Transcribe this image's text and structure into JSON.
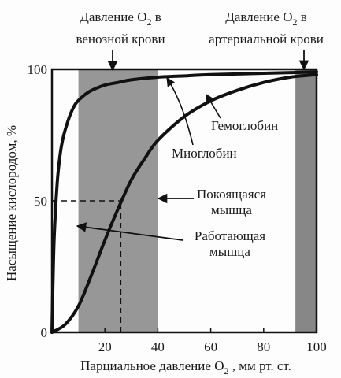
{
  "chart_data": {
    "type": "line",
    "xlabel_parts": [
      "Парциальное давление O",
      "2",
      " , мм рт. ст."
    ],
    "ylabel": "Насыщение кислородом, %",
    "xlim": [
      0,
      100
    ],
    "ylim": [
      0,
      100
    ],
    "x_ticks": [
      20,
      40,
      60,
      80,
      100
    ],
    "y_ticks": [
      0,
      50,
      100
    ],
    "grid": false,
    "shaded_bands": [
      {
        "x_from": 10,
        "x_to": 40,
        "color": "#8c8c8c"
      },
      {
        "x_from": 92,
        "x_to": 101,
        "color": "#7a7a7a"
      }
    ],
    "series": [
      {
        "name": "Миоглобин",
        "color": "#111111",
        "x": [
          0,
          0.5,
          1,
          2,
          3,
          4,
          5,
          7,
          9,
          12,
          15,
          20,
          25,
          30,
          40,
          50,
          60,
          80,
          100
        ],
        "y": [
          0,
          25,
          40,
          57,
          67,
          73,
          77,
          83,
          87,
          90,
          92,
          94,
          95,
          96,
          97,
          97.5,
          98,
          98.5,
          99
        ]
      },
      {
        "name": "Гемоглобин",
        "color": "#111111",
        "x": [
          0,
          5,
          10,
          15,
          20,
          25,
          30,
          35,
          40,
          50,
          60,
          70,
          80,
          90,
          100
        ],
        "y": [
          0,
          3,
          10,
          22,
          35,
          47,
          58,
          66,
          73,
          82,
          88,
          92,
          95,
          97,
          98
        ]
      }
    ],
    "reference_lines": [
      {
        "kind": "horizontal",
        "y": 50,
        "x_from": 0,
        "x_to": 26
      },
      {
        "kind": "vertical",
        "x": 26,
        "y_from": 0,
        "y_to": 50
      }
    ],
    "annotations": {
      "venous": {
        "line1": "Давление O",
        "sub": "2",
        "tail": " в",
        "line2": "венозной крови"
      },
      "arterial": {
        "line1": "Давление O",
        "sub": "2",
        "tail": " в",
        "line2": "артериальной крови"
      },
      "hemoglobin": "Гемоглобин",
      "myoglobin": "Миоглобин",
      "resting": {
        "line1": "Покоящаяся",
        "line2": "мышца"
      },
      "working": {
        "line1": "Работающая",
        "line2": "мышца"
      }
    }
  }
}
